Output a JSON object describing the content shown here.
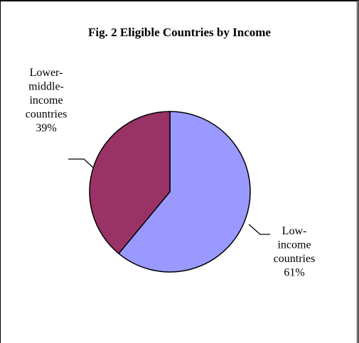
{
  "chart_data": {
    "type": "pie",
    "title": "Fig. 2  Eligible Countries by Income",
    "slices": [
      {
        "label_lines": [
          "Low-",
          "income",
          "countries"
        ],
        "pct_text": "61%",
        "value": 61,
        "color": "#9999ff"
      },
      {
        "label_lines": [
          "Lower-",
          "middle-",
          "income",
          "countries"
        ],
        "pct_text": "39%",
        "value": 39,
        "color": "#993366"
      }
    ]
  }
}
